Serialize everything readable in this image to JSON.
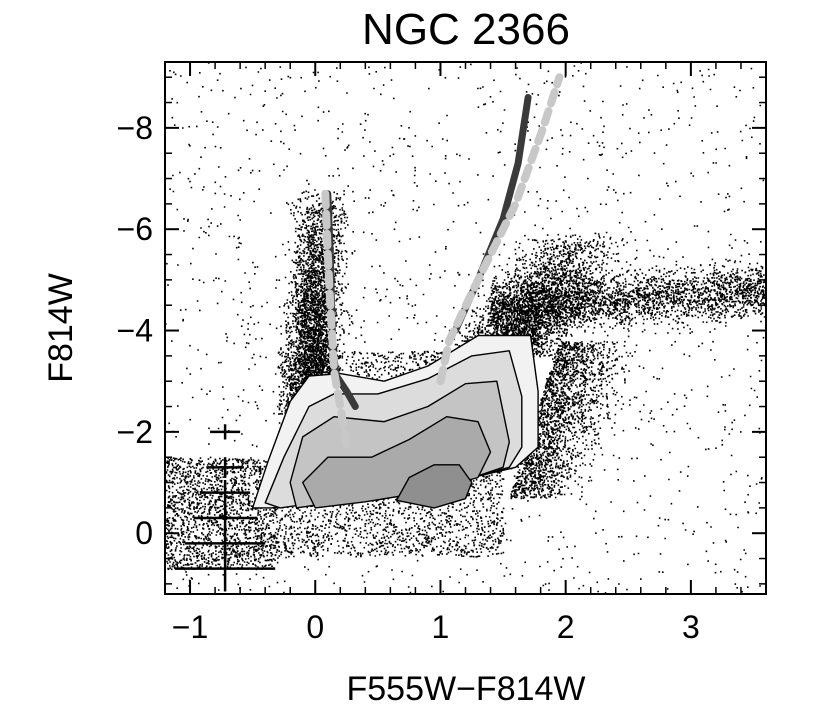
{
  "chart_data": {
    "type": "scatter",
    "title": "NGC 2366",
    "xlabel": "F555W−F814W",
    "ylabel": "F814W",
    "xlim": [
      -1.2,
      3.6
    ],
    "ylim": [
      1.2,
      -9.3
    ],
    "xticks": [
      {
        "value": -1,
        "label": "−1"
      },
      {
        "value": 0,
        "label": "0"
      },
      {
        "value": 1,
        "label": "1"
      },
      {
        "value": 2,
        "label": "2"
      },
      {
        "value": 3,
        "label": "3"
      }
    ],
    "yticks": [
      {
        "value": -8,
        "label": "−8"
      },
      {
        "value": -6,
        "label": "−6"
      },
      {
        "value": -4,
        "label": "−4"
      },
      {
        "value": -2,
        "label": "−2"
      },
      {
        "value": 0,
        "label": "0"
      }
    ],
    "grid": false,
    "colors": {
      "points": "#000000",
      "contour_levels": [
        "#f2f2f2",
        "#dcdcdc",
        "#c4c4c4",
        "#aaaaaa",
        "#8f8f8f"
      ],
      "isochrone_dark": "#3a3a3a",
      "isochrone_light": "#c8c8c8"
    },
    "contour_levels": [
      [
        [
          -0.35,
          -0.5
        ],
        [
          0.35,
          -0.75
        ],
        [
          1.0,
          -0.95
        ],
        [
          1.6,
          -1.3
        ],
        [
          1.78,
          -1.7
        ],
        [
          1.78,
          -2.8
        ],
        [
          1.72,
          -3.9
        ],
        [
          1.3,
          -3.9
        ],
        [
          0.9,
          -3.3
        ],
        [
          0.55,
          -3.0
        ],
        [
          0.2,
          -3.15
        ],
        [
          -0.05,
          -3.1
        ],
        [
          -0.2,
          -2.6
        ],
        [
          -0.38,
          -1.4
        ],
        [
          -0.5,
          -0.5
        ]
      ],
      [
        [
          -0.28,
          -0.5
        ],
        [
          0.35,
          -0.72
        ],
        [
          1.0,
          -0.92
        ],
        [
          1.55,
          -1.3
        ],
        [
          1.65,
          -1.7
        ],
        [
          1.65,
          -2.7
        ],
        [
          1.55,
          -3.6
        ],
        [
          1.25,
          -3.5
        ],
        [
          0.9,
          -3.05
        ],
        [
          0.5,
          -2.75
        ],
        [
          0.15,
          -2.75
        ],
        [
          -0.05,
          -2.5
        ],
        [
          -0.25,
          -1.5
        ],
        [
          -0.4,
          -0.6
        ]
      ],
      [
        [
          -0.15,
          -0.5
        ],
        [
          0.35,
          -0.68
        ],
        [
          1.0,
          -0.88
        ],
        [
          1.5,
          -1.3
        ],
        [
          1.55,
          -1.8
        ],
        [
          1.45,
          -3.0
        ],
        [
          1.2,
          -2.95
        ],
        [
          0.9,
          -2.5
        ],
        [
          0.55,
          -2.2
        ],
        [
          0.15,
          -2.3
        ],
        [
          -0.1,
          -1.9
        ],
        [
          -0.2,
          -1.0
        ]
      ],
      [
        [
          0.0,
          -0.5
        ],
        [
          0.4,
          -0.62
        ],
        [
          0.9,
          -0.82
        ],
        [
          1.3,
          -1.1
        ],
        [
          1.4,
          -1.6
        ],
        [
          1.3,
          -2.2
        ],
        [
          1.05,
          -2.3
        ],
        [
          0.75,
          -1.85
        ],
        [
          0.45,
          -1.5
        ],
        [
          0.1,
          -1.5
        ],
        [
          -0.1,
          -1.0
        ]
      ],
      [
        [
          0.65,
          -0.65
        ],
        [
          0.95,
          -0.5
        ],
        [
          1.2,
          -0.68
        ],
        [
          1.25,
          -1.0
        ],
        [
          1.15,
          -1.35
        ],
        [
          0.95,
          -1.35
        ],
        [
          0.75,
          -1.1
        ]
      ]
    ],
    "isochrones": [
      {
        "style": "dark-solid",
        "points": [
          [
            0.1,
            -6.7
          ],
          [
            0.12,
            -5.5
          ],
          [
            0.13,
            -4.5
          ],
          [
            0.14,
            -3.6
          ],
          [
            0.17,
            -3.1
          ],
          [
            0.25,
            -2.8
          ],
          [
            0.32,
            -2.5
          ]
        ]
      },
      {
        "style": "light-dashed",
        "points": [
          [
            0.08,
            -6.7
          ],
          [
            0.1,
            -5.5
          ],
          [
            0.12,
            -4.5
          ],
          [
            0.14,
            -3.7
          ],
          [
            0.15,
            -3.2
          ],
          [
            0.2,
            -2.5
          ],
          [
            0.25,
            -1.7
          ]
        ]
      },
      {
        "style": "dark-solid",
        "points": [
          [
            1.12,
            -4.0
          ],
          [
            1.3,
            -5.0
          ],
          [
            1.5,
            -6.2
          ],
          [
            1.62,
            -7.3
          ],
          [
            1.7,
            -8.6
          ]
        ]
      },
      {
        "style": "light-dashed",
        "points": [
          [
            1.0,
            -3.0
          ],
          [
            1.07,
            -3.8
          ],
          [
            1.3,
            -5.0
          ],
          [
            1.6,
            -6.5
          ],
          [
            1.82,
            -8.0
          ],
          [
            1.95,
            -9.0
          ]
        ]
      }
    ],
    "error_bars": [
      {
        "x": -0.72,
        "y": -2.0,
        "xerr": 0.12,
        "yerr": 0.15
      },
      {
        "x": -0.72,
        "y": -1.3,
        "xerr": 0.15,
        "yerr": 0.2
      },
      {
        "x": -0.72,
        "y": -0.8,
        "xerr": 0.2,
        "yerr": 0.25
      },
      {
        "x": -0.72,
        "y": -0.3,
        "xerr": 0.25,
        "yerr": 0.3
      },
      {
        "x": -0.72,
        "y": 0.2,
        "xerr": 0.32,
        "yerr": 0.35
      },
      {
        "x": -0.72,
        "y": 0.7,
        "xerr": 0.4,
        "yerr": 0.45
      }
    ],
    "point_clouds": [
      {
        "n": 3800,
        "x": [
          -0.3,
          1.5
        ],
        "y": [
          -3.6,
          0.45
        ],
        "kind": "box"
      },
      {
        "n": 3500,
        "x_center": 0.0,
        "x_sd": 0.14,
        "y": [
          -6.8,
          -2.5
        ],
        "kind": "blue-plume"
      },
      {
        "n": 2800,
        "x_center": 1.5,
        "x_sd": 0.28,
        "y": [
          -6.0,
          -3.5
        ],
        "kind": "rgb-upper"
      },
      {
        "n": 2600,
        "x": [
          1.4,
          3.6
        ],
        "y": [
          -5.2,
          -3.8
        ],
        "kind": "agb-arm"
      },
      {
        "n": 2000,
        "x": [
          1.6,
          2.7
        ],
        "y": [
          -3.8,
          -0.7
        ],
        "kind": "red-wall"
      },
      {
        "n": 1800,
        "x": [
          -1.2,
          -0.3
        ],
        "y": [
          -1.5,
          0.7
        ],
        "kind": "faint-blue"
      },
      {
        "n": 1500,
        "x": [
          -1.2,
          3.6
        ],
        "y": [
          -9.3,
          1.2
        ],
        "kind": "field"
      }
    ]
  }
}
